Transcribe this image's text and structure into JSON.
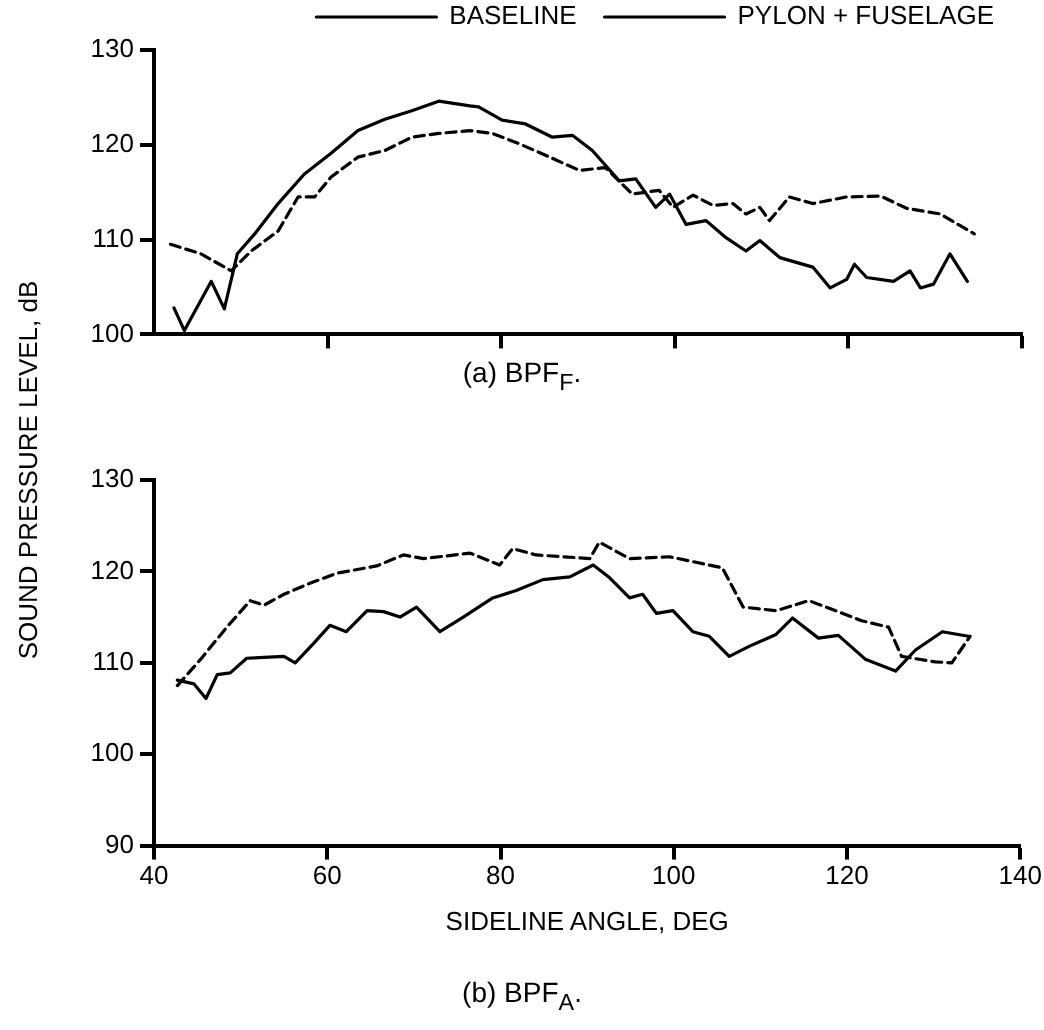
{
  "chart_data": [
    {
      "type": "line",
      "title": "(a) BPF$_{F}$.",
      "ylabel": "SOUND PRESSURE LEVEL, dB",
      "xlim": [
        40,
        140
      ],
      "xticks": [
        60,
        80,
        100,
        120,
        140
      ],
      "ylim": [
        100,
        130
      ],
      "yticks": [
        100,
        110,
        120,
        130
      ],
      "tick_labels": "y",
      "grid": false,
      "legend": "top right",
      "marker": "none",
      "series": [
        {
          "name": "BASELINE",
          "color": "#000000",
          "line_style": "solid",
          "x": [
            42.3,
            43.5,
            46.6,
            48.1,
            49.6,
            51.6,
            54.3,
            57.3,
            60.4,
            63.5,
            66.6,
            69.7,
            72.8,
            76.4,
            77.4,
            80.1,
            82.8,
            85.9,
            88.2,
            90.5,
            93.6,
            95.5,
            97.8,
            99.4,
            101.3,
            103.6,
            105.9,
            108.2,
            109.8,
            112.1,
            115.9,
            117.9,
            119.8,
            120.7,
            122.1,
            125.2,
            127.1,
            128.3,
            129.8,
            131.7,
            133.7
          ],
          "values": [
            102.8,
            100.4,
            105.6,
            102.7,
            108.5,
            110.6,
            113.8,
            116.9,
            119.1,
            121.5,
            122.7,
            123.6,
            124.6,
            124.1,
            124.0,
            122.6,
            122.2,
            120.8,
            121.0,
            119.4,
            116.2,
            116.4,
            113.4,
            114.8,
            111.6,
            112.0,
            110.2,
            108.8,
            109.9,
            108.1,
            107.1,
            104.9,
            105.8,
            107.4,
            106.0,
            105.6,
            106.7,
            104.9,
            105.3,
            108.5,
            105.6
          ]
        },
        {
          "name": "PYLON + FUSELAGE",
          "color": "#000000",
          "line_style": "dashed",
          "x": [
            41.9,
            45.4,
            48.9,
            51.2,
            54.3,
            56.6,
            58.5,
            60.4,
            63.5,
            66.6,
            69.7,
            72.8,
            76.4,
            79.0,
            82.1,
            85.1,
            89.0,
            92.0,
            95.1,
            98.2,
            99.8,
            102.1,
            104.4,
            106.7,
            108.2,
            109.8,
            110.9,
            113.2,
            115.9,
            119.8,
            123.7,
            126.7,
            130.6,
            134.5
          ],
          "values": [
            109.5,
            108.5,
            106.7,
            108.8,
            110.9,
            114.5,
            114.5,
            116.6,
            118.7,
            119.4,
            120.8,
            121.2,
            121.5,
            121.2,
            120.1,
            118.9,
            117.3,
            117.6,
            114.8,
            115.2,
            113.4,
            114.7,
            113.6,
            113.8,
            112.7,
            113.4,
            112.0,
            114.5,
            113.8,
            114.5,
            114.6,
            113.3,
            112.7,
            110.6
          ]
        }
      ]
    },
    {
      "type": "line",
      "title": "(b) BPF$_{A}$.",
      "xlabel": "SIDELINE ANGLE, DEG",
      "xlim": [
        40,
        140
      ],
      "xticks": [
        40,
        60,
        80,
        100,
        120,
        140
      ],
      "ylim": [
        90,
        130
      ],
      "yticks": [
        90,
        100,
        110,
        120,
        130
      ],
      "grid": false,
      "legend": false,
      "marker": "none",
      "series": [
        {
          "color": "#000000",
          "line_style": "solid",
          "x": [
            42.7,
            44.6,
            46.0,
            47.3,
            48.8,
            50.7,
            55.0,
            56.3,
            58.4,
            60.3,
            62.2,
            64.6,
            66.5,
            68.4,
            70.3,
            73.0,
            75.7,
            79.1,
            81.8,
            84.9,
            88.0,
            90.7,
            92.6,
            94.9,
            96.4,
            98.0,
            99.9,
            102.2,
            104.1,
            106.4,
            108.7,
            111.8,
            113.7,
            116.7,
            119.0,
            122.1,
            125.6,
            127.9,
            131.0,
            134.0
          ],
          "values": [
            108.1,
            107.7,
            106.1,
            108.7,
            108.9,
            110.5,
            110.7,
            110.0,
            112.1,
            114.1,
            113.4,
            115.7,
            115.6,
            115.0,
            116.1,
            113.4,
            115.0,
            117.1,
            117.9,
            119.1,
            119.4,
            120.7,
            119.3,
            117.1,
            117.5,
            115.4,
            115.7,
            113.4,
            112.9,
            110.7,
            111.8,
            113.1,
            114.9,
            112.7,
            113.0,
            110.4,
            109.1,
            111.4,
            113.4,
            112.9
          ]
        },
        {
          "color": "#000000",
          "line_style": "dashed",
          "x": [
            42.7,
            45.4,
            48.4,
            51.1,
            52.7,
            55.0,
            58.0,
            61.1,
            65.7,
            68.8,
            71.1,
            76.5,
            79.9,
            81.4,
            84.1,
            90.3,
            91.4,
            94.9,
            99.5,
            105.6,
            108.0,
            111.8,
            115.6,
            118.7,
            121.7,
            124.8,
            126.3,
            130.2,
            132.1,
            134.2
          ],
          "values": [
            107.5,
            110.4,
            113.9,
            116.8,
            116.3,
            117.5,
            118.7,
            119.8,
            120.6,
            121.8,
            121.4,
            122.0,
            120.7,
            122.5,
            121.8,
            121.4,
            123.2,
            121.4,
            121.6,
            120.4,
            116.1,
            115.7,
            116.8,
            115.7,
            114.6,
            113.9,
            110.7,
            110.1,
            110.0,
            112.9
          ]
        }
      ]
    }
  ]
}
